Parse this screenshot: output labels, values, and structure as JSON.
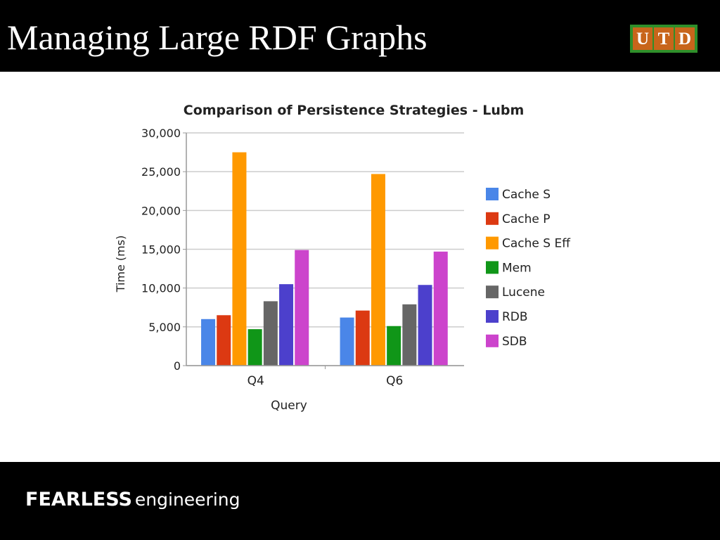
{
  "slide": {
    "title": "Managing Large RDF Graphs",
    "logo_letters": [
      "U",
      "T",
      "D"
    ],
    "footer_strong": "FEARLESS",
    "footer_rest": "engineering"
  },
  "colors": {
    "background": "#ffffff",
    "bars": [
      "#4a86e8",
      "#dc3912",
      "#ff9900",
      "#109618",
      "#666666",
      "#4c40cc",
      "#cc44cc"
    ]
  },
  "chart_data": {
    "type": "bar",
    "title": "Comparison of Persistence Strategies - Lubm",
    "xlabel": "Query",
    "ylabel": "Time (ms)",
    "categories": [
      "Q4",
      "Q6"
    ],
    "ylim": [
      0,
      30000
    ],
    "yticks": [
      0,
      5000,
      10000,
      15000,
      20000,
      25000,
      30000
    ],
    "ytick_labels": [
      "0",
      "5,000",
      "10,000",
      "15,000",
      "20,000",
      "25,000",
      "30,000"
    ],
    "grid": true,
    "legend_position": "right",
    "series": [
      {
        "name": "Cache S",
        "values": [
          6000,
          6200
        ]
      },
      {
        "name": "Cache P",
        "values": [
          6500,
          7100
        ]
      },
      {
        "name": "Cache S Eff",
        "values": [
          27500,
          24700
        ]
      },
      {
        "name": "Mem",
        "values": [
          4700,
          5100
        ]
      },
      {
        "name": "Lucene",
        "values": [
          8300,
          7900
        ]
      },
      {
        "name": "RDB",
        "values": [
          10500,
          10400
        ]
      },
      {
        "name": "SDB",
        "values": [
          14900,
          14700
        ]
      }
    ]
  }
}
